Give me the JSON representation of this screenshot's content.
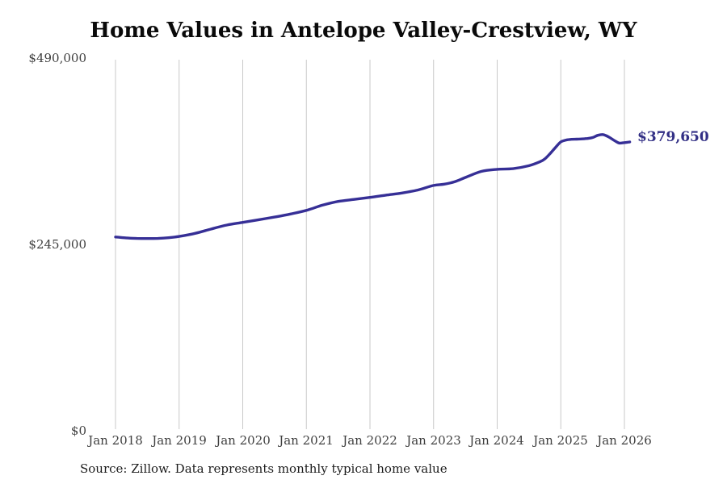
{
  "source_note": "Source: Zillow. Data represents monthly typical home value",
  "colors": {
    "line": "#362f96",
    "annotation": "#322f85",
    "grid": "#c9c9c9",
    "axis_label": "#3f3f3f",
    "title": "#0a0a0a"
  },
  "chart_data": {
    "type": "line",
    "title": "Home Values in Antelope Valley-Crestview, WY",
    "xlabel": "",
    "ylabel": "",
    "grid": "vertical-only",
    "legend": "none",
    "x_axis": {
      "unit": "month",
      "first_point": "Jan 2018",
      "last_point": "Feb 2026",
      "tick_labels": [
        "Jan 2018",
        "Jan 2019",
        "Jan 2020",
        "Jan 2021",
        "Jan 2022",
        "Jan 2023",
        "Jan 2024",
        "Jan 2025",
        "Jan 2026"
      ]
    },
    "y_axis": {
      "range": [
        0,
        490000
      ],
      "tick_values": [
        490000,
        245000,
        0
      ],
      "tick_labels": [
        "$490,000",
        "$245,000",
        "$0"
      ]
    },
    "final_value": 379650,
    "final_value_label": "$379,650",
    "series": [
      {
        "name": "Typical home value (USD)",
        "points_months_since_jan2018": [
          [
            0,
            254800
          ],
          [
            2,
            253600
          ],
          [
            4,
            252900
          ],
          [
            6,
            252700
          ],
          [
            8,
            252900
          ],
          [
            10,
            253800
          ],
          [
            12,
            255500
          ],
          [
            15,
            259500
          ],
          [
            18,
            265200
          ],
          [
            21,
            270500
          ],
          [
            24,
            274000
          ],
          [
            27,
            277500
          ],
          [
            30,
            281000
          ],
          [
            33,
            285000
          ],
          [
            36,
            289800
          ],
          [
            39,
            296500
          ],
          [
            42,
            301500
          ],
          [
            45,
            304200
          ],
          [
            48,
            306800
          ],
          [
            51,
            309800
          ],
          [
            54,
            312600
          ],
          [
            57,
            316500
          ],
          [
            60,
            322500
          ],
          [
            62,
            324200
          ],
          [
            64,
            327500
          ],
          [
            66,
            333000
          ],
          [
            69,
            341000
          ],
          [
            72,
            343700
          ],
          [
            75,
            344600
          ],
          [
            78,
            348500
          ],
          [
            80,
            353500
          ],
          [
            81,
            357500
          ],
          [
            82,
            364500
          ],
          [
            83,
            372500
          ],
          [
            84,
            379800
          ],
          [
            85,
            382200
          ],
          [
            86,
            383200
          ],
          [
            87,
            383400
          ],
          [
            88,
            383700
          ],
          [
            89,
            384300
          ],
          [
            90,
            385500
          ],
          [
            91,
            388500
          ],
          [
            92,
            389300
          ],
          [
            93,
            386500
          ],
          [
            94,
            382000
          ],
          [
            95,
            378300
          ],
          [
            96,
            378900
          ],
          [
            97,
            379650
          ]
        ]
      }
    ]
  }
}
